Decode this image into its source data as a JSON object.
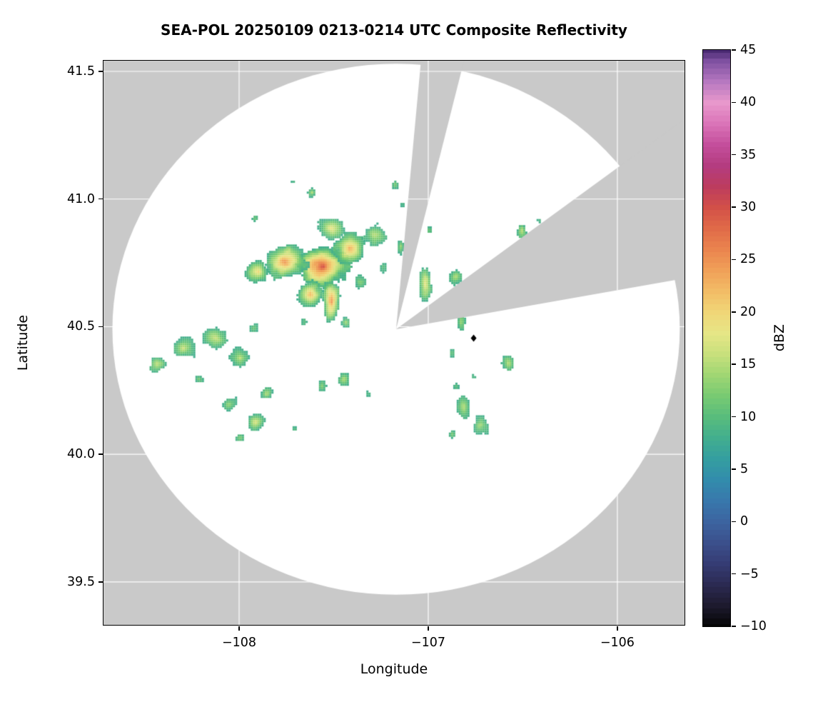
{
  "chart_data": {
    "type": "heatmap",
    "title": "SEA-POL 20250109 0213-0214 UTC Composite Reflectivity",
    "xlabel": "Longitude",
    "ylabel": "Latitude",
    "xlim": [
      -108.717,
      -105.645
    ],
    "ylim": [
      39.332,
      41.542
    ],
    "x_ticks": [
      -108,
      -107,
      -106
    ],
    "x_tick_labels": [
      "−108",
      "−107",
      "−106"
    ],
    "y_ticks": [
      39.5,
      40.0,
      40.5,
      41.0,
      41.5
    ],
    "y_tick_labels": [
      "39.5",
      "40.0",
      "40.5",
      "41.0",
      "41.5"
    ],
    "grid": true,
    "grid_color": "#ffffff",
    "background_color": "#c9c9c9",
    "coverage_color": "#ffffff",
    "radar": {
      "center_lon": -107.17,
      "center_lat": 40.49,
      "radius_lon_deg": 1.5,
      "radius_lat_deg": 1.04
    },
    "blocked_sectors_azimuth_deg": [
      [
        5.3,
        14.2
      ],
      [
        53.9,
        80.0
      ]
    ],
    "colorbar": {
      "label": "dBZ",
      "min": -10,
      "max": 45,
      "ticks": [
        -10,
        -5,
        0,
        5,
        10,
        15,
        20,
        25,
        30,
        35,
        40,
        45
      ],
      "tick_labels": [
        "−10",
        "−5",
        "0",
        "5",
        "10",
        "15",
        "20",
        "25",
        "30",
        "35",
        "40",
        "45"
      ],
      "stops": [
        [
          -10,
          "#050505"
        ],
        [
          -8,
          "#1d1a2e"
        ],
        [
          -6,
          "#2b2a52"
        ],
        [
          -4,
          "#353c74"
        ],
        [
          -2,
          "#3b508c"
        ],
        [
          0,
          "#3c64a0"
        ],
        [
          2,
          "#3878ac"
        ],
        [
          4,
          "#328cac"
        ],
        [
          6,
          "#349ea0"
        ],
        [
          8,
          "#42ae8e"
        ],
        [
          10,
          "#58bc7c"
        ],
        [
          12,
          "#78ca72"
        ],
        [
          14,
          "#a0d673"
        ],
        [
          16,
          "#c8e07c"
        ],
        [
          18,
          "#e6e686"
        ],
        [
          20,
          "#f0d677"
        ],
        [
          22,
          "#f2bc66"
        ],
        [
          24,
          "#f0a058"
        ],
        [
          26,
          "#ea844e"
        ],
        [
          28,
          "#e06a48"
        ],
        [
          30,
          "#d25048"
        ],
        [
          32,
          "#bc3c5e"
        ],
        [
          34,
          "#b43c80"
        ],
        [
          36,
          "#c44e9c"
        ],
        [
          38,
          "#da74b8"
        ],
        [
          40,
          "#e898cc"
        ],
        [
          42,
          "#b678c0"
        ],
        [
          44,
          "#7e50a0"
        ],
        [
          45,
          "#4a2a72"
        ]
      ]
    },
    "echoes_lon_lat_rxdeg_rydeg_peakdbz": [
      [
        -107.56,
        40.74,
        0.15,
        0.1,
        30
      ],
      [
        -107.76,
        40.76,
        0.13,
        0.075,
        24
      ],
      [
        -107.9,
        40.72,
        0.07,
        0.05,
        19
      ],
      [
        -107.42,
        40.81,
        0.1,
        0.08,
        23
      ],
      [
        -107.29,
        40.86,
        0.08,
        0.06,
        17
      ],
      [
        -107.52,
        40.89,
        0.09,
        0.055,
        19
      ],
      [
        -107.63,
        40.63,
        0.075,
        0.06,
        21
      ],
      [
        -107.52,
        40.6,
        0.05,
        0.095,
        26
      ],
      [
        -107.37,
        40.68,
        0.055,
        0.05,
        14
      ],
      [
        -107.44,
        40.52,
        0.045,
        0.035,
        16
      ],
      [
        -107.66,
        40.52,
        0.03,
        0.03,
        12
      ],
      [
        -107.24,
        40.74,
        0.04,
        0.04,
        13
      ],
      [
        -107.02,
        40.67,
        0.04,
        0.075,
        17
      ],
      [
        -107.15,
        40.82,
        0.03,
        0.045,
        14
      ],
      [
        -107.18,
        41.06,
        0.03,
        0.025,
        13
      ],
      [
        -107.14,
        40.98,
        0.02,
        0.02,
        11
      ],
      [
        -107.62,
        41.03,
        0.03,
        0.022,
        14
      ],
      [
        -107.72,
        41.07,
        0.02,
        0.018,
        12
      ],
      [
        -107.92,
        40.93,
        0.025,
        0.02,
        13
      ],
      [
        -108.0,
        40.97,
        0.015,
        0.015,
        10
      ],
      [
        -108.3,
        40.42,
        0.075,
        0.05,
        17
      ],
      [
        -108.13,
        40.46,
        0.08,
        0.055,
        16
      ],
      [
        -108.0,
        40.38,
        0.06,
        0.045,
        15
      ],
      [
        -108.44,
        40.36,
        0.045,
        0.035,
        14
      ],
      [
        -107.93,
        40.5,
        0.025,
        0.02,
        10
      ],
      [
        -108.22,
        40.3,
        0.03,
        0.022,
        12
      ],
      [
        -108.06,
        40.2,
        0.05,
        0.04,
        15
      ],
      [
        -107.92,
        40.13,
        0.05,
        0.042,
        16
      ],
      [
        -107.86,
        40.24,
        0.04,
        0.032,
        14
      ],
      [
        -108.0,
        40.07,
        0.028,
        0.022,
        12
      ],
      [
        -107.71,
        40.1,
        0.02,
        0.018,
        11
      ],
      [
        -107.45,
        40.3,
        0.04,
        0.035,
        14
      ],
      [
        -107.57,
        40.27,
        0.028,
        0.024,
        12
      ],
      [
        -107.32,
        40.24,
        0.02,
        0.018,
        10
      ],
      [
        -106.82,
        40.19,
        0.05,
        0.055,
        17
      ],
      [
        -106.73,
        40.12,
        0.05,
        0.05,
        16
      ],
      [
        -106.88,
        40.08,
        0.03,
        0.026,
        13
      ],
      [
        -106.86,
        40.27,
        0.028,
        0.024,
        12
      ],
      [
        -106.77,
        40.31,
        0.022,
        0.02,
        10
      ],
      [
        -106.83,
        40.52,
        0.025,
        0.055,
        13
      ],
      [
        -106.88,
        40.4,
        0.018,
        0.025,
        10
      ],
      [
        -106.86,
        40.7,
        0.05,
        0.045,
        16
      ],
      [
        -106.58,
        40.36,
        0.04,
        0.04,
        15
      ],
      [
        -106.51,
        40.88,
        0.03,
        0.04,
        15
      ],
      [
        -106.42,
        40.92,
        0.02,
        0.018,
        12
      ],
      [
        -107.0,
        40.88,
        0.025,
        0.02,
        12
      ]
    ],
    "marker": {
      "lon": -106.76,
      "lat": 40.455,
      "symbol": "diamond",
      "color": "#000000"
    }
  }
}
